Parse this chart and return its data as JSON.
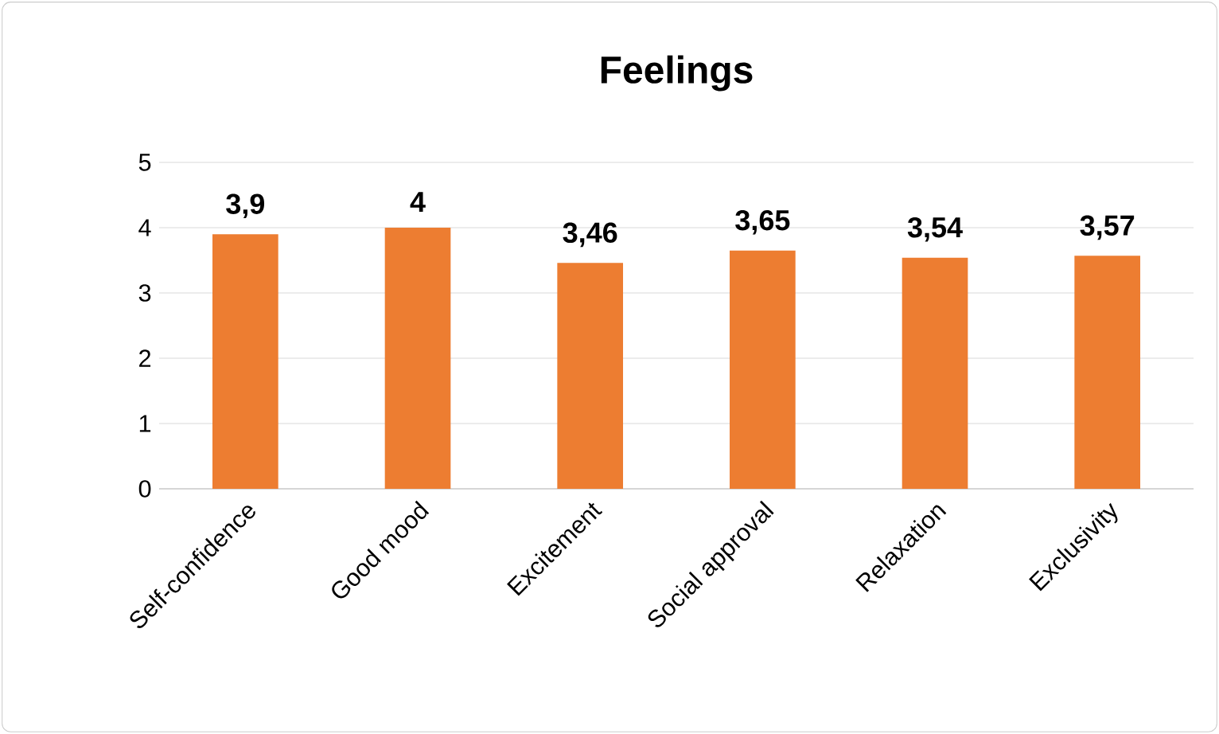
{
  "chart_data": {
    "type": "bar",
    "title": "Feelings",
    "categories": [
      "Self-confidence",
      "Good mood",
      "Excitement",
      "Social approval",
      "Relaxation",
      "Exclusivity"
    ],
    "values": [
      3.9,
      4,
      3.46,
      3.65,
      3.54,
      3.57
    ],
    "value_labels": [
      "3,9",
      "4",
      "3,46",
      "3,65",
      "3,54",
      "3,57"
    ],
    "color": "#ed7d31",
    "ylim": [
      0,
      5
    ],
    "yticks": [
      0,
      1,
      2,
      3,
      4,
      5
    ],
    "grid": "y"
  }
}
